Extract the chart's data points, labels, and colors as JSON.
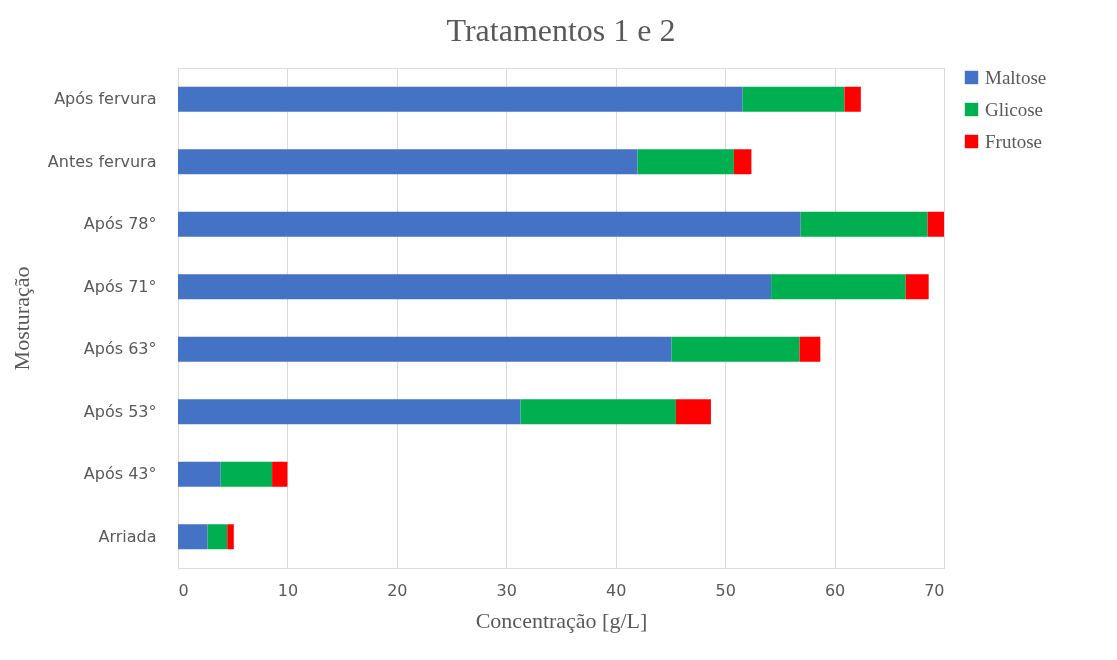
{
  "chart_data": {
    "type": "bar",
    "orientation": "horizontal",
    "stacked": true,
    "title": "Tratamentos 1 e 2",
    "xlabel": "Concentração [g/L]",
    "ylabel": "Mosturação",
    "categories": [
      "Após fervura",
      "Antes fervura",
      "Após 78°",
      "Após 71°",
      "Após 63°",
      "Após 53°",
      "Após 43°",
      "Arriada"
    ],
    "series": [
      {
        "name": "Maltose",
        "color": "#4472c4",
        "values": [
          51.6,
          42.0,
          56.9,
          54.2,
          45.1,
          31.3,
          3.9,
          2.7
        ]
      },
      {
        "name": "Glicose",
        "color": "#00b050",
        "values": [
          9.3,
          8.8,
          11.6,
          12.3,
          11.7,
          14.2,
          4.7,
          1.8
        ]
      },
      {
        "name": "Frutose",
        "color": "#ff0000",
        "values": [
          1.5,
          1.6,
          1.5,
          2.1,
          1.9,
          3.2,
          1.4,
          0.6
        ]
      }
    ],
    "xlim": [
      0,
      70
    ],
    "xticks": [
      0,
      10,
      20,
      30,
      40,
      50,
      60,
      70
    ],
    "grid": "x",
    "legend": "right"
  }
}
